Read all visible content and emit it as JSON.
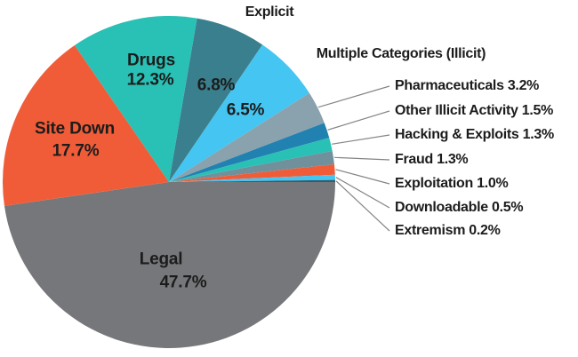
{
  "figure": {
    "background": "#ffffff",
    "leader_line_color": "#848484",
    "label_text_color": "#1c1c1c"
  },
  "chart_data": {
    "type": "pie",
    "title": "",
    "unit": "%",
    "legend_position": "none",
    "clockwise": true,
    "start_angle_deg": 9.72,
    "slices": [
      {
        "label": "Explicit",
        "value": 6.8,
        "display": "6.8%",
        "color": "#3a7f8d",
        "label_mode": "name-outside-value-inside"
      },
      {
        "label": "Multiple Categories (Illicit)",
        "value": 6.5,
        "display": "6.5%",
        "color": "#45c5f1",
        "label_mode": "name-outside-value-inside"
      },
      {
        "label": "Pharmaceuticals",
        "value": 3.2,
        "display": "3.2%",
        "color": "#8aa2ae",
        "label_mode": "callout"
      },
      {
        "label": "Other Illicit Activity",
        "value": 1.5,
        "display": "1.5%",
        "color": "#2181b0",
        "label_mode": "callout"
      },
      {
        "label": "Hacking & Exploits",
        "value": 1.3,
        "display": "1.3%",
        "color": "#29c0b5",
        "label_mode": "callout"
      },
      {
        "label": "Fraud",
        "value": 1.3,
        "display": "1.3%",
        "color": "#70919c",
        "label_mode": "callout"
      },
      {
        "label": "Exploitation",
        "value": 1.0,
        "display": "1.0%",
        "color": "#f15c38",
        "label_mode": "callout"
      },
      {
        "label": "Downloadable",
        "value": 0.5,
        "display": "0.5%",
        "color": "#45c5f1",
        "label_mode": "callout"
      },
      {
        "label": "Extremism",
        "value": 0.2,
        "display": "0.2%",
        "color": "#2a5f73",
        "label_mode": "callout"
      },
      {
        "label": "Legal",
        "value": 47.7,
        "display": "47.7%",
        "color": "#76777a",
        "label_mode": "inside"
      },
      {
        "label": "Site Down",
        "value": 17.7,
        "display": "17.7%",
        "color": "#f15c38",
        "label_mode": "inside"
      },
      {
        "label": "Drugs",
        "value": 12.3,
        "display": "12.3%",
        "color": "#29c0b5",
        "label_mode": "inside"
      }
    ]
  }
}
